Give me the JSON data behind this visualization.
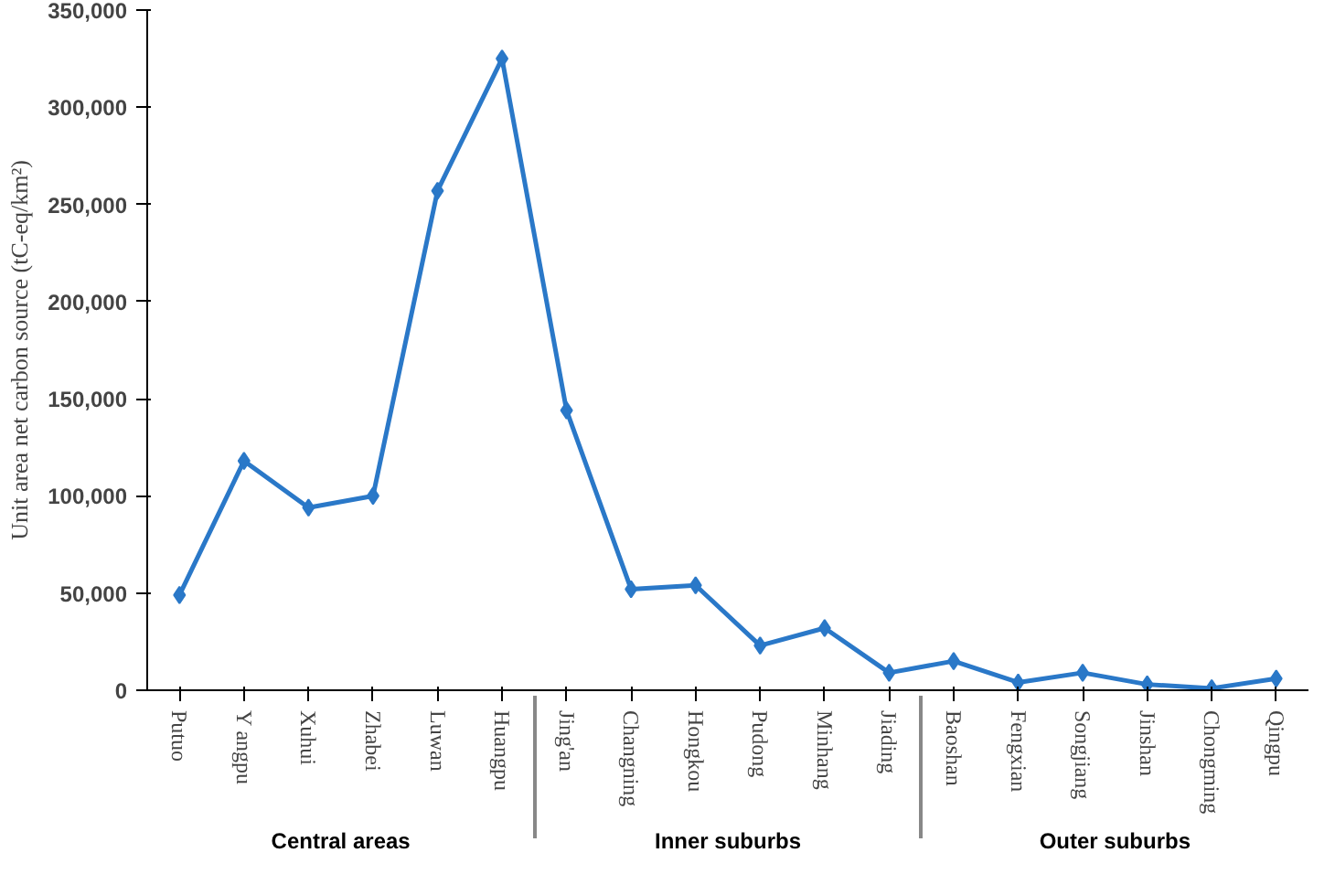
{
  "chart_data": {
    "type": "line",
    "ylabel": "Unit area net carbon source (tC-eq/km²)",
    "categories": [
      "Putuo",
      "Y angpu",
      "Xuhui",
      "Zhabei",
      "Luwan",
      "Huangpu",
      "Jing'an",
      "Changning",
      "Hongkou",
      "Pudong",
      "Minhang",
      "Jiading",
      "Baoshan",
      "Fengxian",
      "Songjiang",
      "Jinshan",
      "Chongming",
      "Qingpu"
    ],
    "series": [
      {
        "color": "#2a78c8",
        "values": [
          49000,
          118000,
          94000,
          100000,
          257000,
          325000,
          144000,
          52000,
          54000,
          23000,
          32000,
          9000,
          15000,
          4000,
          9000,
          3000,
          1000,
          6000
        ]
      }
    ],
    "ylim": [
      0,
      350000
    ],
    "yticks": [
      0,
      {
        "value": 50000,
        "label": "50,000"
      },
      {
        "value": 100000,
        "label": "100,000"
      },
      {
        "value": 150000,
        "label": "150,000"
      },
      {
        "value": 200000,
        "label": "200,000"
      },
      {
        "value": 250000,
        "label": "250,000"
      },
      {
        "value": 300000,
        "label": "300,000"
      },
      {
        "value": 350000,
        "label": "350,000"
      }
    ],
    "annotations": [
      "Central areas",
      "Inner suburbs",
      "Outer suburbs"
    ],
    "marker": "diamond",
    "line_style": "solid",
    "grid": false
  }
}
